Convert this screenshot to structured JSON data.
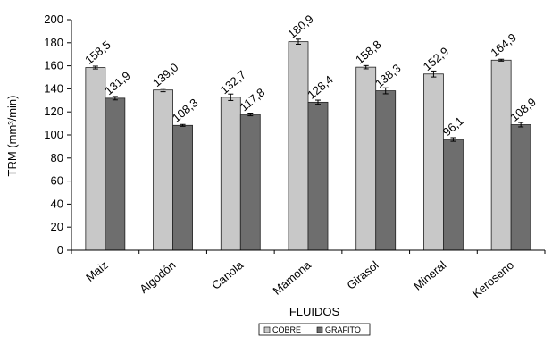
{
  "chart_data": {
    "type": "bar",
    "title": "",
    "xlabel": "FLUIDOS",
    "ylabel": "TRM (mm³/min)",
    "ylim": [
      0,
      200
    ],
    "y_ticks": [
      "0",
      "20",
      "40",
      "60",
      "80",
      "100",
      "120",
      "140",
      "160",
      "180",
      "200"
    ],
    "grid": false,
    "error_bars": true,
    "legend_position": "bottom",
    "categories": [
      "Maiz",
      "Algodón",
      "Canola",
      "Mamona",
      "Girasol",
      "Mineral",
      "Keroseno"
    ],
    "series": [
      {
        "name": "COBRE",
        "color": "#c8c8c8",
        "values": [
          158.5,
          139.0,
          132.7,
          180.9,
          158.8,
          152.9,
          164.9
        ],
        "labels": [
          "158,5",
          "139,0",
          "132,7",
          "180,9",
          "158,8",
          "152,9",
          "164,9"
        ],
        "errors": [
          1.2,
          1.5,
          2.8,
          2.2,
          1.4,
          2.6,
          0.8
        ]
      },
      {
        "name": "GRAFITO",
        "color": "#6e6e6e",
        "values": [
          131.9,
          108.3,
          117.8,
          128.4,
          138.3,
          96.1,
          108.9
        ],
        "labels": [
          "131,9",
          "108,3",
          "117,8",
          "128,4",
          "138,3",
          "96,1",
          "108,9"
        ],
        "errors": [
          1.5,
          0.8,
          1.2,
          1.8,
          2.6,
          1.6,
          1.9
        ]
      }
    ]
  }
}
